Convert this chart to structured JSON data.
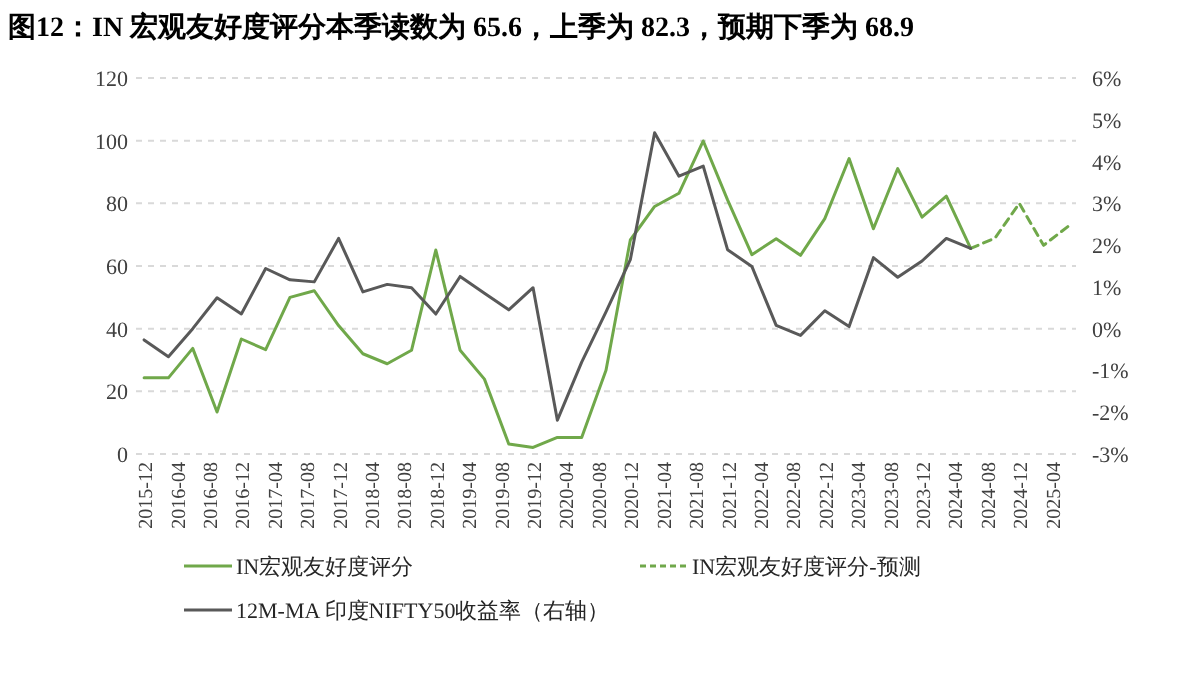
{
  "chart_data": {
    "type": "line",
    "title": "图12：IN 宏观友好度评分本季读数为 65.6，上季为 82.3，预期下季为 68.9",
    "series": [
      {
        "name": "IN宏观友好度评分",
        "color": "#70a84a",
        "line_style": "solid",
        "x": [
          "2015-12",
          "2016-03",
          "2016-06",
          "2016-09",
          "2016-12",
          "2017-03",
          "2017-06",
          "2017-09",
          "2017-12",
          "2018-03",
          "2018-06",
          "2018-09",
          "2018-12",
          "2019-03",
          "2019-06",
          "2019-09",
          "2019-12",
          "2020-03",
          "2020-06",
          "2020-09",
          "2020-12",
          "2021-03",
          "2021-06",
          "2021-09",
          "2021-12",
          "2022-03",
          "2022-06",
          "2022-09",
          "2022-12",
          "2023-03",
          "2023-06",
          "2023-09",
          "2023-12",
          "2024-03",
          "2024-06"
        ],
        "values": [
          24.3,
          24.3,
          33.7,
          13.4,
          36.7,
          33.3,
          50.0,
          52.1,
          41.0,
          32.0,
          28.8,
          33.1,
          65.1,
          33.1,
          23.9,
          3.2,
          2.1,
          5.3,
          5.3,
          26.7,
          68.3,
          79.0,
          83.2,
          99.9,
          81.1,
          63.6,
          68.7,
          63.4,
          75.1,
          94.3,
          71.9,
          91.1,
          75.6,
          82.3,
          65.6
        ]
      },
      {
        "name": "IN宏观友好度评分-预测",
        "color": "#70a84a",
        "line_style": "dashed",
        "x": [
          "2024-06",
          "2024-09",
          "2024-12",
          "2025-03",
          "2025-06"
        ],
        "values": [
          65.6,
          68.9,
          80.0,
          66.6,
          72.6
        ]
      },
      {
        "name": "12M-MA 印度NIFTY50收益率（右轴）",
        "color": "#595959",
        "line_style": "solid",
        "axis": "y2",
        "x": [
          "2015-12",
          "2016-03",
          "2016-06",
          "2016-09",
          "2016-12",
          "2017-03",
          "2017-06",
          "2017-09",
          "2017-12",
          "2018-03",
          "2018-06",
          "2018-09",
          "2018-12",
          "2019-03",
          "2019-06",
          "2019-09",
          "2019-12",
          "2020-03",
          "2020-06",
          "2020-09",
          "2020-12",
          "2021-03",
          "2021-06",
          "2021-09",
          "2021-12",
          "2022-03",
          "2022-06",
          "2022-09",
          "2022-12",
          "2023-03",
          "2023-06",
          "2023-09",
          "2023-12",
          "2024-03",
          "2024-06"
        ],
        "values": [
          -0.27,
          -0.67,
          0.0,
          0.74,
          0.35,
          1.44,
          1.17,
          1.12,
          2.16,
          0.88,
          1.06,
          0.98,
          0.35,
          1.25,
          0.85,
          0.45,
          0.98,
          -2.19,
          -0.8,
          0.4,
          1.65,
          4.69,
          3.65,
          3.89,
          1.89,
          1.49,
          0.08,
          -0.16,
          0.43,
          0.05,
          1.7,
          1.23,
          1.62,
          2.16,
          1.92
        ]
      }
    ],
    "xlim": [
      "2015-11",
      "2025-07"
    ],
    "xticks": [
      "2015-12",
      "2016-04",
      "2016-08",
      "2016-12",
      "2017-04",
      "2017-08",
      "2017-12",
      "2018-04",
      "2018-08",
      "2018-12",
      "2019-04",
      "2019-08",
      "2019-12",
      "2020-04",
      "2020-08",
      "2020-12",
      "2021-04",
      "2021-08",
      "2021-12",
      "2022-04",
      "2022-08",
      "2022-12",
      "2023-04",
      "2023-08",
      "2023-12",
      "2024-04",
      "2024-08",
      "2024-12",
      "2025-04"
    ],
    "ylim": [
      0,
      120
    ],
    "yticks": [
      0,
      20,
      40,
      60,
      80,
      100,
      120
    ],
    "y2lim": [
      -3,
      6
    ],
    "y2ticks": [
      {
        "value": -3,
        "label": "-3%"
      },
      {
        "value": -2,
        "label": "-2%"
      },
      {
        "value": -1,
        "label": "-1%"
      },
      {
        "value": 0,
        "label": "0%"
      },
      {
        "value": 1,
        "label": "1%"
      },
      {
        "value": 2,
        "label": "2%"
      },
      {
        "value": 3,
        "label": "3%"
      },
      {
        "value": 4,
        "label": "4%"
      },
      {
        "value": 5,
        "label": "5%"
      },
      {
        "value": 6,
        "label": "6%"
      }
    ],
    "grid": "y",
    "legend": "bottom",
    "marker": "none"
  }
}
